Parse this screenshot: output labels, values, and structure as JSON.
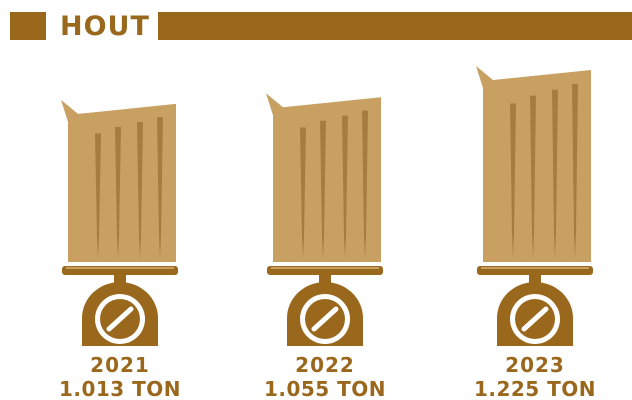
{
  "chart_data": {
    "type": "pictograph",
    "title": "HOUT",
    "categories": [
      "2021",
      "2022",
      "2023"
    ],
    "values": [
      1013,
      1055,
      1225
    ],
    "value_labels": [
      "1.013 TON",
      "1.055 TON",
      "1.225 TON"
    ],
    "color": "#c7a062"
  }
}
